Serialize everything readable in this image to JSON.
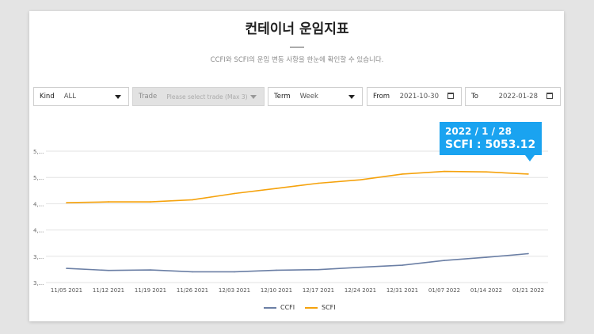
{
  "header": {
    "title": "컨테이너 운임지표",
    "subtitle": "CCFI와 SCFI의 운임 변동 사항을 한눈에 확인할 수 있습니다."
  },
  "filters": {
    "kind": {
      "label": "Kind",
      "value": "ALL"
    },
    "trade": {
      "label": "Trade",
      "placeholder": "Please select trade (Max 3)"
    },
    "term": {
      "label": "Term",
      "value": "Week"
    },
    "from": {
      "label": "From",
      "value": "2021-10-30"
    },
    "to": {
      "label": "To",
      "value": "2022-01-28"
    }
  },
  "tooltip": {
    "date": "2022 / 1 / 28",
    "value": "SCFI : 5053.12"
  },
  "colors": {
    "CCFI": "#6b7fa5",
    "SCFI": "#f5a20c",
    "tooltip": "#1aa3f0"
  },
  "chart_data": {
    "type": "line",
    "categories": [
      "11/05 2021",
      "11/12 2021",
      "11/19 2021",
      "11/26 2021",
      "12/03 2021",
      "12/10 2021",
      "12/17 2021",
      "12/24 2021",
      "12/31 2021",
      "01/07 2022",
      "01/14 2022",
      "01/21 2022"
    ],
    "y_tick_labels": [
      "3,...",
      "3,...",
      "4,...",
      "4,...",
      "5,...",
      "5,..."
    ],
    "ylim": [
      3000,
      5500
    ],
    "grid": true,
    "legend_position": "bottom-center",
    "series": [
      {
        "name": "CCFI",
        "values": [
          3270,
          3230,
          3240,
          3205,
          3205,
          3235,
          3245,
          3290,
          3330,
          3420,
          3480,
          3550
        ]
      },
      {
        "name": "SCFI",
        "values": [
          4520,
          4535,
          4535,
          4575,
          4695,
          4790,
          4890,
          4955,
          5065,
          5115,
          5105,
          5065
        ]
      }
    ]
  }
}
